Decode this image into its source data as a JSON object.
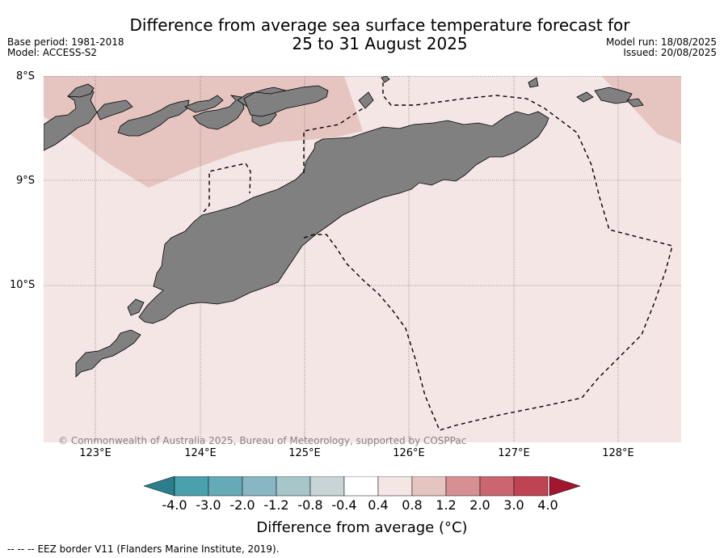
{
  "title": "Difference from average sea surface temperature forecast for\n25 to 31 August 2025",
  "meta_left": {
    "base_period": "Base period: 1981-2018",
    "model": "Model: ACCESS-S2"
  },
  "meta_right": {
    "model_run": "Model run: 18/08/2025",
    "issued": "Issued: 20/08/2025"
  },
  "map": {
    "lat_labels": [
      "8°S",
      "9°S",
      "10°S"
    ],
    "lon_labels": [
      "123°E",
      "124°E",
      "125°E",
      "126°E",
      "127°E",
      "128°E"
    ],
    "land_color": "#808080",
    "background_anomaly_color": "#f4e6e5",
    "warm_anomaly_color": "#e6c5c1",
    "copyright": "© Commonwealth of Australia 2025, Bureau of Meteorology, supported by COSPPac"
  },
  "colorbar": {
    "ticks": [
      "-4.0",
      "-3.0",
      "-2.0",
      "-1.2",
      "-0.8",
      "-0.4",
      "0.4",
      "0.8",
      "1.2",
      "2.0",
      "3.0",
      "4.0"
    ],
    "colors": [
      "#49a1ad",
      "#66aab7",
      "#88b7c3",
      "#a7c6c9",
      "#c8d4d5",
      "#ffffff",
      "#f4e6e5",
      "#e6c5c1",
      "#d68f93",
      "#c9666f",
      "#be4454"
    ],
    "under_color": "#2c7f8a",
    "over_color": "#a3162f",
    "title": "Difference from average (°C)"
  },
  "legend_note": "EEZ border V11 (Flanders Marine Institute, 2019).",
  "legend_marker": "--  --  --"
}
